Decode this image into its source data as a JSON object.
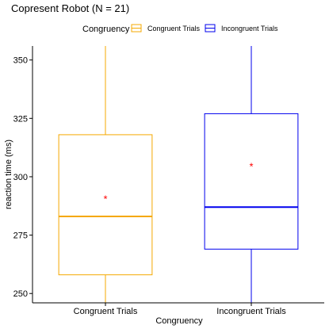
{
  "chart_data": {
    "type": "box",
    "title": "Copresent Robot (N = 21)",
    "xlabel": "Congruency",
    "ylabel": "reaction time (ms)",
    "ylim": [
      246,
      356
    ],
    "yticks": [
      250,
      275,
      300,
      325,
      350
    ],
    "grid": false,
    "legend": {
      "title": "Congruency",
      "position": "top",
      "entries": [
        "Congruent Trials",
        "Incongruent Trials"
      ]
    },
    "categories": [
      "Congruent Trials",
      "Incongruent Trials"
    ],
    "series": [
      {
        "name": "Congruent Trials",
        "color": "#F5A800",
        "whisker_low": 246,
        "q1": 258,
        "median": 283,
        "q3": 318,
        "whisker_high": 356,
        "mean": 290.7
      },
      {
        "name": "Incongruent Trials",
        "color": "#0000EE",
        "whisker_low": 246,
        "q1": 269,
        "median": 287,
        "q3": 327,
        "whisker_high": 356,
        "mean": 304.6
      }
    ],
    "mean_marker": {
      "symbol": "*",
      "color": "#FF0000"
    }
  }
}
